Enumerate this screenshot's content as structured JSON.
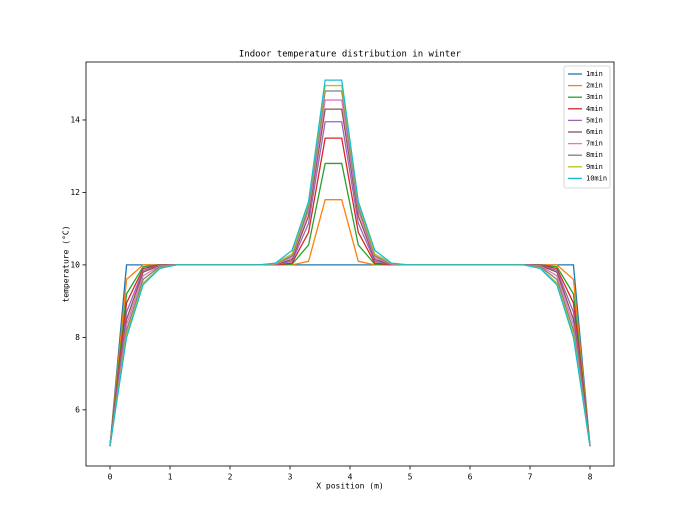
{
  "chart_data": {
    "type": "line",
    "title": "Indoor temperature distribution in winter",
    "x_label": "X position (m)",
    "y_label": "temperature (°C)",
    "x": [
      0,
      0.276,
      0.552,
      0.828,
      1.103,
      1.379,
      1.655,
      1.931,
      2.207,
      2.483,
      2.759,
      3.034,
      3.31,
      3.586,
      3.862,
      4.138,
      4.414,
      4.69,
      4.966,
      5.241,
      5.517,
      5.793,
      6.069,
      6.345,
      6.621,
      6.897,
      7.172,
      7.448,
      7.724,
      8
    ],
    "xlim": [
      -0.4,
      8.4
    ],
    "ylim": [
      4.45,
      15.6
    ],
    "xticks": [
      0,
      1,
      2,
      3,
      4,
      5,
      6,
      7,
      8
    ],
    "yticks": [
      6,
      8,
      10,
      12,
      14
    ],
    "grid": false,
    "legend": "upper right",
    "series": [
      {
        "name": "1min",
        "color": "#1f77b4",
        "values": [
          5,
          10,
          10,
          10,
          10,
          10,
          10,
          10,
          10,
          10,
          10,
          10,
          10,
          10,
          10,
          10,
          10,
          10,
          10,
          10,
          10,
          10,
          10,
          10,
          10,
          10,
          10,
          10,
          10,
          5
        ]
      },
      {
        "name": "2min",
        "color": "#ff7f0e",
        "values": [
          5,
          9.6,
          10,
          10,
          10,
          10,
          10,
          10,
          10,
          10,
          10,
          10,
          10.1,
          11.8,
          11.8,
          10.1,
          10,
          10,
          10,
          10,
          10,
          10,
          10,
          10,
          10,
          10,
          10,
          10,
          9.6,
          5
        ]
      },
      {
        "name": "3min",
        "color": "#2ca02c",
        "values": [
          5,
          9.2,
          9.95,
          10,
          10,
          10,
          10,
          10,
          10,
          10,
          10,
          10.02,
          10.55,
          12.8,
          12.8,
          10.55,
          10.02,
          10,
          10,
          10,
          10,
          10,
          10,
          10,
          10,
          10,
          10,
          9.95,
          9.2,
          5
        ]
      },
      {
        "name": "4min",
        "color": "#d62728",
        "values": [
          5,
          8.95,
          9.9,
          10,
          10,
          10,
          10,
          10,
          10,
          10,
          10,
          10.05,
          10.9,
          13.5,
          13.5,
          10.9,
          10.05,
          10,
          10,
          10,
          10,
          10,
          10,
          10,
          10,
          10,
          10,
          9.9,
          8.95,
          5
        ]
      },
      {
        "name": "5min",
        "color": "#9467bd",
        "values": [
          5,
          8.7,
          9.85,
          9.99,
          10,
          10,
          10,
          10,
          10,
          10,
          10.01,
          10.1,
          11.15,
          13.95,
          13.95,
          11.15,
          10.1,
          10.01,
          10,
          10,
          10,
          10,
          10,
          10,
          10,
          10,
          9.99,
          9.85,
          8.7,
          5
        ]
      },
      {
        "name": "6min",
        "color": "#8c564b",
        "values": [
          5,
          8.5,
          9.8,
          9.98,
          10,
          10,
          10,
          10,
          10,
          10,
          10.01,
          10.15,
          11.35,
          14.3,
          14.3,
          11.35,
          10.15,
          10.01,
          10,
          10,
          10,
          10,
          10,
          10,
          10,
          10,
          9.98,
          9.8,
          8.5,
          5
        ]
      },
      {
        "name": "7min",
        "color": "#e377c2",
        "values": [
          5,
          8.35,
          9.7,
          9.97,
          10,
          10,
          10,
          10,
          10,
          10,
          10.02,
          10.2,
          11.5,
          14.55,
          14.55,
          11.5,
          10.2,
          10.02,
          10,
          10,
          10,
          10,
          10,
          10,
          10,
          10,
          9.97,
          9.7,
          8.35,
          5
        ]
      },
      {
        "name": "8min",
        "color": "#7f7f7f",
        "values": [
          5,
          8.2,
          9.6,
          9.95,
          10,
          10,
          10,
          10,
          10,
          10,
          10.03,
          10.25,
          11.6,
          14.8,
          14.8,
          11.6,
          10.25,
          10.03,
          10,
          10,
          10,
          10,
          10,
          10,
          10,
          10,
          9.95,
          9.6,
          8.2,
          5
        ]
      },
      {
        "name": "9min",
        "color": "#bcbd22",
        "values": [
          5,
          8.1,
          9.5,
          9.92,
          10,
          10,
          10,
          10,
          10,
          10,
          10.04,
          10.3,
          11.7,
          14.95,
          14.95,
          11.7,
          10.3,
          10.04,
          10,
          10,
          10,
          10,
          10,
          10,
          10,
          10,
          9.92,
          9.5,
          8.1,
          5
        ]
      },
      {
        "name": "10min",
        "color": "#17becf",
        "values": [
          5,
          8.0,
          9.45,
          9.9,
          10,
          10,
          10,
          10,
          10,
          10,
          10.05,
          10.4,
          11.75,
          15.1,
          15.1,
          11.75,
          10.4,
          10.05,
          10,
          10,
          10,
          10,
          10,
          10,
          10,
          10,
          9.9,
          9.45,
          8.0,
          5
        ]
      }
    ]
  }
}
